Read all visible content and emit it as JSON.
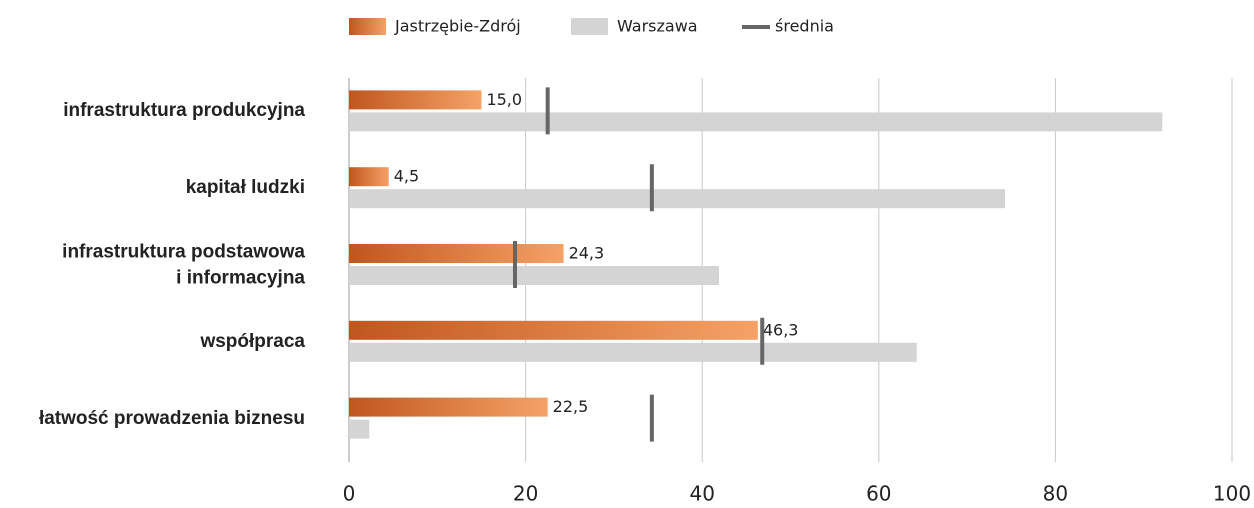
{
  "chart_data": {
    "type": "bar",
    "orientation": "horizontal",
    "categories": [
      "infrastruktura produkcyjna",
      "kapitał ludzki",
      "infrastruktura podstawowa\ni informacyjna",
      "współpraca",
      "łatwość prowadzenia biznesu"
    ],
    "series": [
      {
        "name": "Jastrzębie-Zdrój",
        "color": [
          "#c0561f",
          "#f5a266"
        ],
        "values": [
          15.0,
          4.5,
          24.3,
          46.3,
          22.5
        ],
        "value_labels": [
          "15,0",
          "4,5",
          "24,3",
          "46,3",
          "22,5"
        ]
      },
      {
        "name": "Warszawa",
        "color": "#d4d4d4",
        "values": [
          92.1,
          74.3,
          41.9,
          64.3,
          2.3
        ]
      },
      {
        "name": "średnia",
        "color": "#666666",
        "marker": "line",
        "values": [
          22.5,
          34.3,
          18.8,
          46.8,
          34.3
        ]
      }
    ],
    "xlim": [
      0,
      100
    ],
    "xticks": [
      0,
      20,
      40,
      60,
      80,
      100
    ],
    "grid": true
  }
}
